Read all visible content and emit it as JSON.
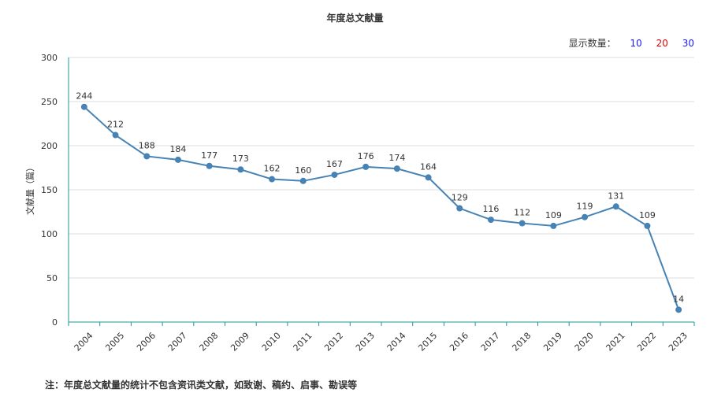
{
  "title": "年度总文献量",
  "count_selector": {
    "label": "显示数量：",
    "options": [
      {
        "value": "10",
        "color": "#1a1aff"
      },
      {
        "value": "20",
        "color": "#e60000"
      },
      {
        "value": "30",
        "color": "#1a1aff"
      }
    ]
  },
  "note": "注：年度总文献量的统计不包含资讯类文献，如致谢、稿约、启事、勘误等",
  "colors": {
    "line": "#4682b4",
    "axis": "#1a9999",
    "grid": "#dddddd"
  },
  "chart_data": {
    "type": "line",
    "title": "年度总文献量",
    "xlabel": "",
    "ylabel": "文献量（篇）",
    "ylim": [
      0,
      300
    ],
    "yticks": [
      0,
      50,
      100,
      150,
      200,
      250,
      300
    ],
    "grid": true,
    "categories": [
      "2004",
      "2005",
      "2006",
      "2007",
      "2008",
      "2009",
      "2010",
      "2011",
      "2012",
      "2013",
      "2014",
      "2015",
      "2016",
      "2017",
      "2018",
      "2019",
      "2020",
      "2021",
      "2022",
      "2023"
    ],
    "series": [
      {
        "values": [
          244,
          212,
          188,
          184,
          177,
          173,
          162,
          160,
          167,
          176,
          174,
          164,
          129,
          116,
          112,
          109,
          119,
          131,
          109,
          14
        ]
      }
    ]
  }
}
